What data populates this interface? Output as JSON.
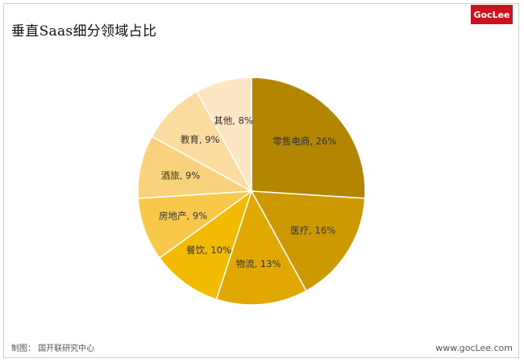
{
  "title": "垂直Saas细分领域占比",
  "logo_text": "GocLee",
  "footer_left": "制图：  国开联研究中心",
  "footer_right": "www.gocLee.com",
  "chart_data": {
    "type": "pie",
    "categories": [
      "零售电商",
      "医疗",
      "物流",
      "餐饮",
      "房地产",
      "酒旅",
      "教育",
      "其他"
    ],
    "values": [
      26,
      16,
      13,
      10,
      9,
      9,
      9,
      8
    ],
    "labels": [
      "零售电商, 26%",
      "医疗, 16%",
      "物流, 13%",
      "餐饮, 10%",
      "房地产, 9%",
      "酒旅, 9%",
      "教育, 9%",
      "其他, 8%"
    ],
    "colors": [
      "#B38600",
      "#CC9900",
      "#E0A800",
      "#F2BA00",
      "#F7C84A",
      "#F9D27E",
      "#FBDCA0",
      "#FDE6C4"
    ],
    "title": "垂直Saas细分领域占比",
    "legend": "none"
  }
}
